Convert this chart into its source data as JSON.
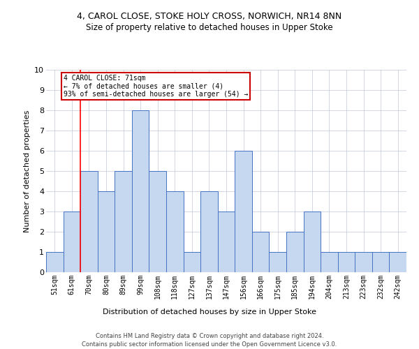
{
  "title1": "4, CAROL CLOSE, STOKE HOLY CROSS, NORWICH, NR14 8NN",
  "title2": "Size of property relative to detached houses in Upper Stoke",
  "xlabel": "Distribution of detached houses by size in Upper Stoke",
  "ylabel": "Number of detached properties",
  "categories": [
    "51sqm",
    "61sqm",
    "70sqm",
    "80sqm",
    "89sqm",
    "99sqm",
    "108sqm",
    "118sqm",
    "127sqm",
    "137sqm",
    "147sqm",
    "156sqm",
    "166sqm",
    "175sqm",
    "185sqm",
    "194sqm",
    "204sqm",
    "213sqm",
    "223sqm",
    "232sqm",
    "242sqm"
  ],
  "values": [
    1,
    3,
    5,
    4,
    5,
    8,
    5,
    4,
    1,
    4,
    3,
    6,
    2,
    1,
    2,
    3,
    1,
    1,
    1,
    1,
    1
  ],
  "bar_color": "#c5d8f0",
  "bar_edge_color": "#4472c4",
  "red_line_index": 2,
  "annotation_lines": [
    "4 CAROL CLOSE: 71sqm",
    "← 7% of detached houses are smaller (4)",
    "93% of semi-detached houses are larger (54) →"
  ],
  "ylim": [
    0,
    10
  ],
  "yticks": [
    0,
    1,
    2,
    3,
    4,
    5,
    6,
    7,
    8,
    9,
    10
  ],
  "footer1": "Contains HM Land Registry data © Crown copyright and database right 2024.",
  "footer2": "Contains public sector information licensed under the Open Government Licence v3.0.",
  "bg_color": "#ffffff",
  "grid_color": "#c0c8d8",
  "annotation_box_color": "#cc0000",
  "title1_fontsize": 9,
  "title2_fontsize": 8.5,
  "ylabel_fontsize": 8,
  "xlabel_fontsize": 8,
  "tick_fontsize": 7,
  "annotation_fontsize": 7,
  "footer_fontsize": 6
}
